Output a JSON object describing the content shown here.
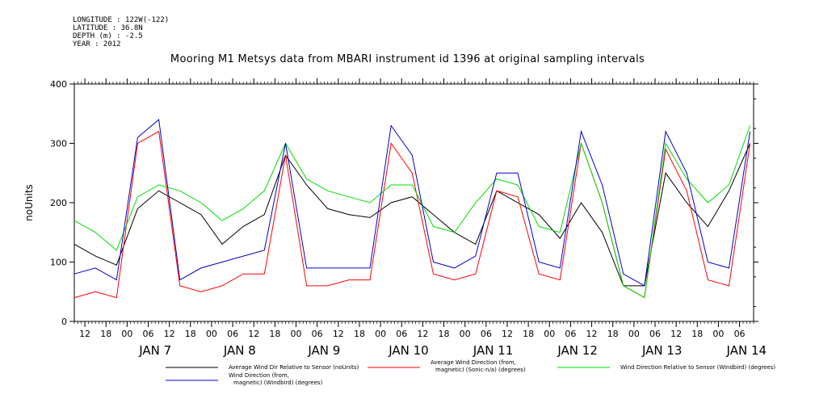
{
  "meta": {
    "longitude": "LONGITUDE : 122W(-122)",
    "latitude": "LATITUDE : 36.8N",
    "depth": "DEPTH (m) : -2.5",
    "year": "YEAR : 2012"
  },
  "chart_data": {
    "type": "line",
    "title": "Mooring M1 Metsys data from MBARI instrument id 1396 at original sampling intervals",
    "ylabel": "noUnits",
    "ylim": [
      0,
      400
    ],
    "yticks": [
      0,
      100,
      200,
      300,
      400
    ],
    "xlim_hours_label": "Jan 6 09:00 – Jan 14 10:00 (2012)",
    "hour_tick_labels": [
      "12",
      "18",
      "00",
      "06",
      "12",
      "18",
      "00",
      "06",
      "12",
      "18",
      "00",
      "06",
      "12",
      "18",
      "00",
      "06",
      "12",
      "18",
      "00",
      "06",
      "12",
      "18",
      "00",
      "06",
      "12",
      "18",
      "00",
      "06",
      "12",
      "18",
      "00",
      "06"
    ],
    "day_labels": [
      "JAN  7",
      "JAN  8",
      "JAN  9",
      "JAN 10",
      "JAN 11",
      "JAN 12",
      "JAN 13",
      "JAN 14"
    ],
    "series": [
      {
        "name": "Average Wind Dir Relative to Sensor (noUnits)",
        "color": "#000000",
        "x": [
          0,
          6,
          12,
          18,
          24,
          30,
          36,
          42,
          48,
          54,
          60,
          66,
          72,
          78,
          84,
          90,
          96,
          102,
          108,
          114,
          120,
          126,
          132,
          138,
          144,
          150,
          156,
          162,
          168,
          174,
          180,
          186,
          192
        ],
        "values": [
          130,
          110,
          95,
          190,
          220,
          200,
          180,
          130,
          160,
          180,
          280,
          230,
          190,
          180,
          175,
          200,
          210,
          180,
          150,
          130,
          220,
          200,
          180,
          140,
          200,
          150,
          60,
          60,
          250,
          200,
          160,
          220,
          300
        ]
      },
      {
        "name": "Average Wind Direction (from, magnetic) (Sonic-n/a) (degrees)",
        "color": "#ff0000",
        "x": [
          0,
          6,
          12,
          18,
          24,
          30,
          36,
          42,
          48,
          54,
          60,
          66,
          72,
          78,
          84,
          90,
          96,
          102,
          108,
          114,
          120,
          126,
          132,
          138,
          144,
          150,
          156,
          162,
          168,
          174,
          180,
          186,
          192
        ],
        "values": [
          40,
          50,
          40,
          300,
          320,
          60,
          50,
          60,
          80,
          80,
          280,
          60,
          60,
          70,
          70,
          300,
          250,
          80,
          70,
          80,
          220,
          210,
          80,
          70,
          300,
          200,
          60,
          40,
          290,
          220,
          70,
          60,
          300
        ]
      },
      {
        "name": "Wind Direction Relative to Sensor (Windbird) (degrees)",
        "color": "#00dd00",
        "x": [
          0,
          6,
          12,
          18,
          24,
          30,
          36,
          42,
          48,
          54,
          60,
          66,
          72,
          78,
          84,
          90,
          96,
          102,
          108,
          114,
          120,
          126,
          132,
          138,
          144,
          150,
          156,
          162,
          168,
          174,
          180,
          186,
          192
        ],
        "values": [
          170,
          150,
          120,
          210,
          230,
          220,
          200,
          170,
          190,
          220,
          300,
          240,
          220,
          210,
          200,
          230,
          230,
          160,
          150,
          200,
          240,
          230,
          160,
          150,
          300,
          200,
          60,
          40,
          300,
          240,
          200,
          230,
          330
        ]
      },
      {
        "name": "Wind Direction (from, magnetic) (Windbird) (degrees)",
        "color": "#0000cc",
        "x": [
          0,
          6,
          12,
          18,
          24,
          30,
          36,
          42,
          48,
          54,
          60,
          66,
          72,
          78,
          84,
          90,
          96,
          102,
          108,
          114,
          120,
          126,
          132,
          138,
          144,
          150,
          156,
          162,
          168,
          174,
          180,
          186,
          192
        ],
        "values": [
          80,
          90,
          70,
          310,
          340,
          70,
          90,
          100,
          110,
          120,
          300,
          90,
          90,
          90,
          90,
          330,
          280,
          100,
          90,
          110,
          250,
          250,
          100,
          90,
          320,
          230,
          80,
          60,
          320,
          250,
          100,
          90,
          320
        ]
      }
    ]
  },
  "legend": [
    {
      "label": "Average Wind Dir Relative to Sensor (noUnits)"
    },
    {
      "label": "Average Wind Direction (from,",
      "label2": "magnetic) (Sonic-n/a) (degrees)"
    },
    {
      "label": "Wind Direction Relative to Sensor (Windbird) (degrees)"
    },
    {
      "label": "Wind Direction (from,",
      "label2": "magnetic) (Windbird) (degrees)"
    }
  ]
}
